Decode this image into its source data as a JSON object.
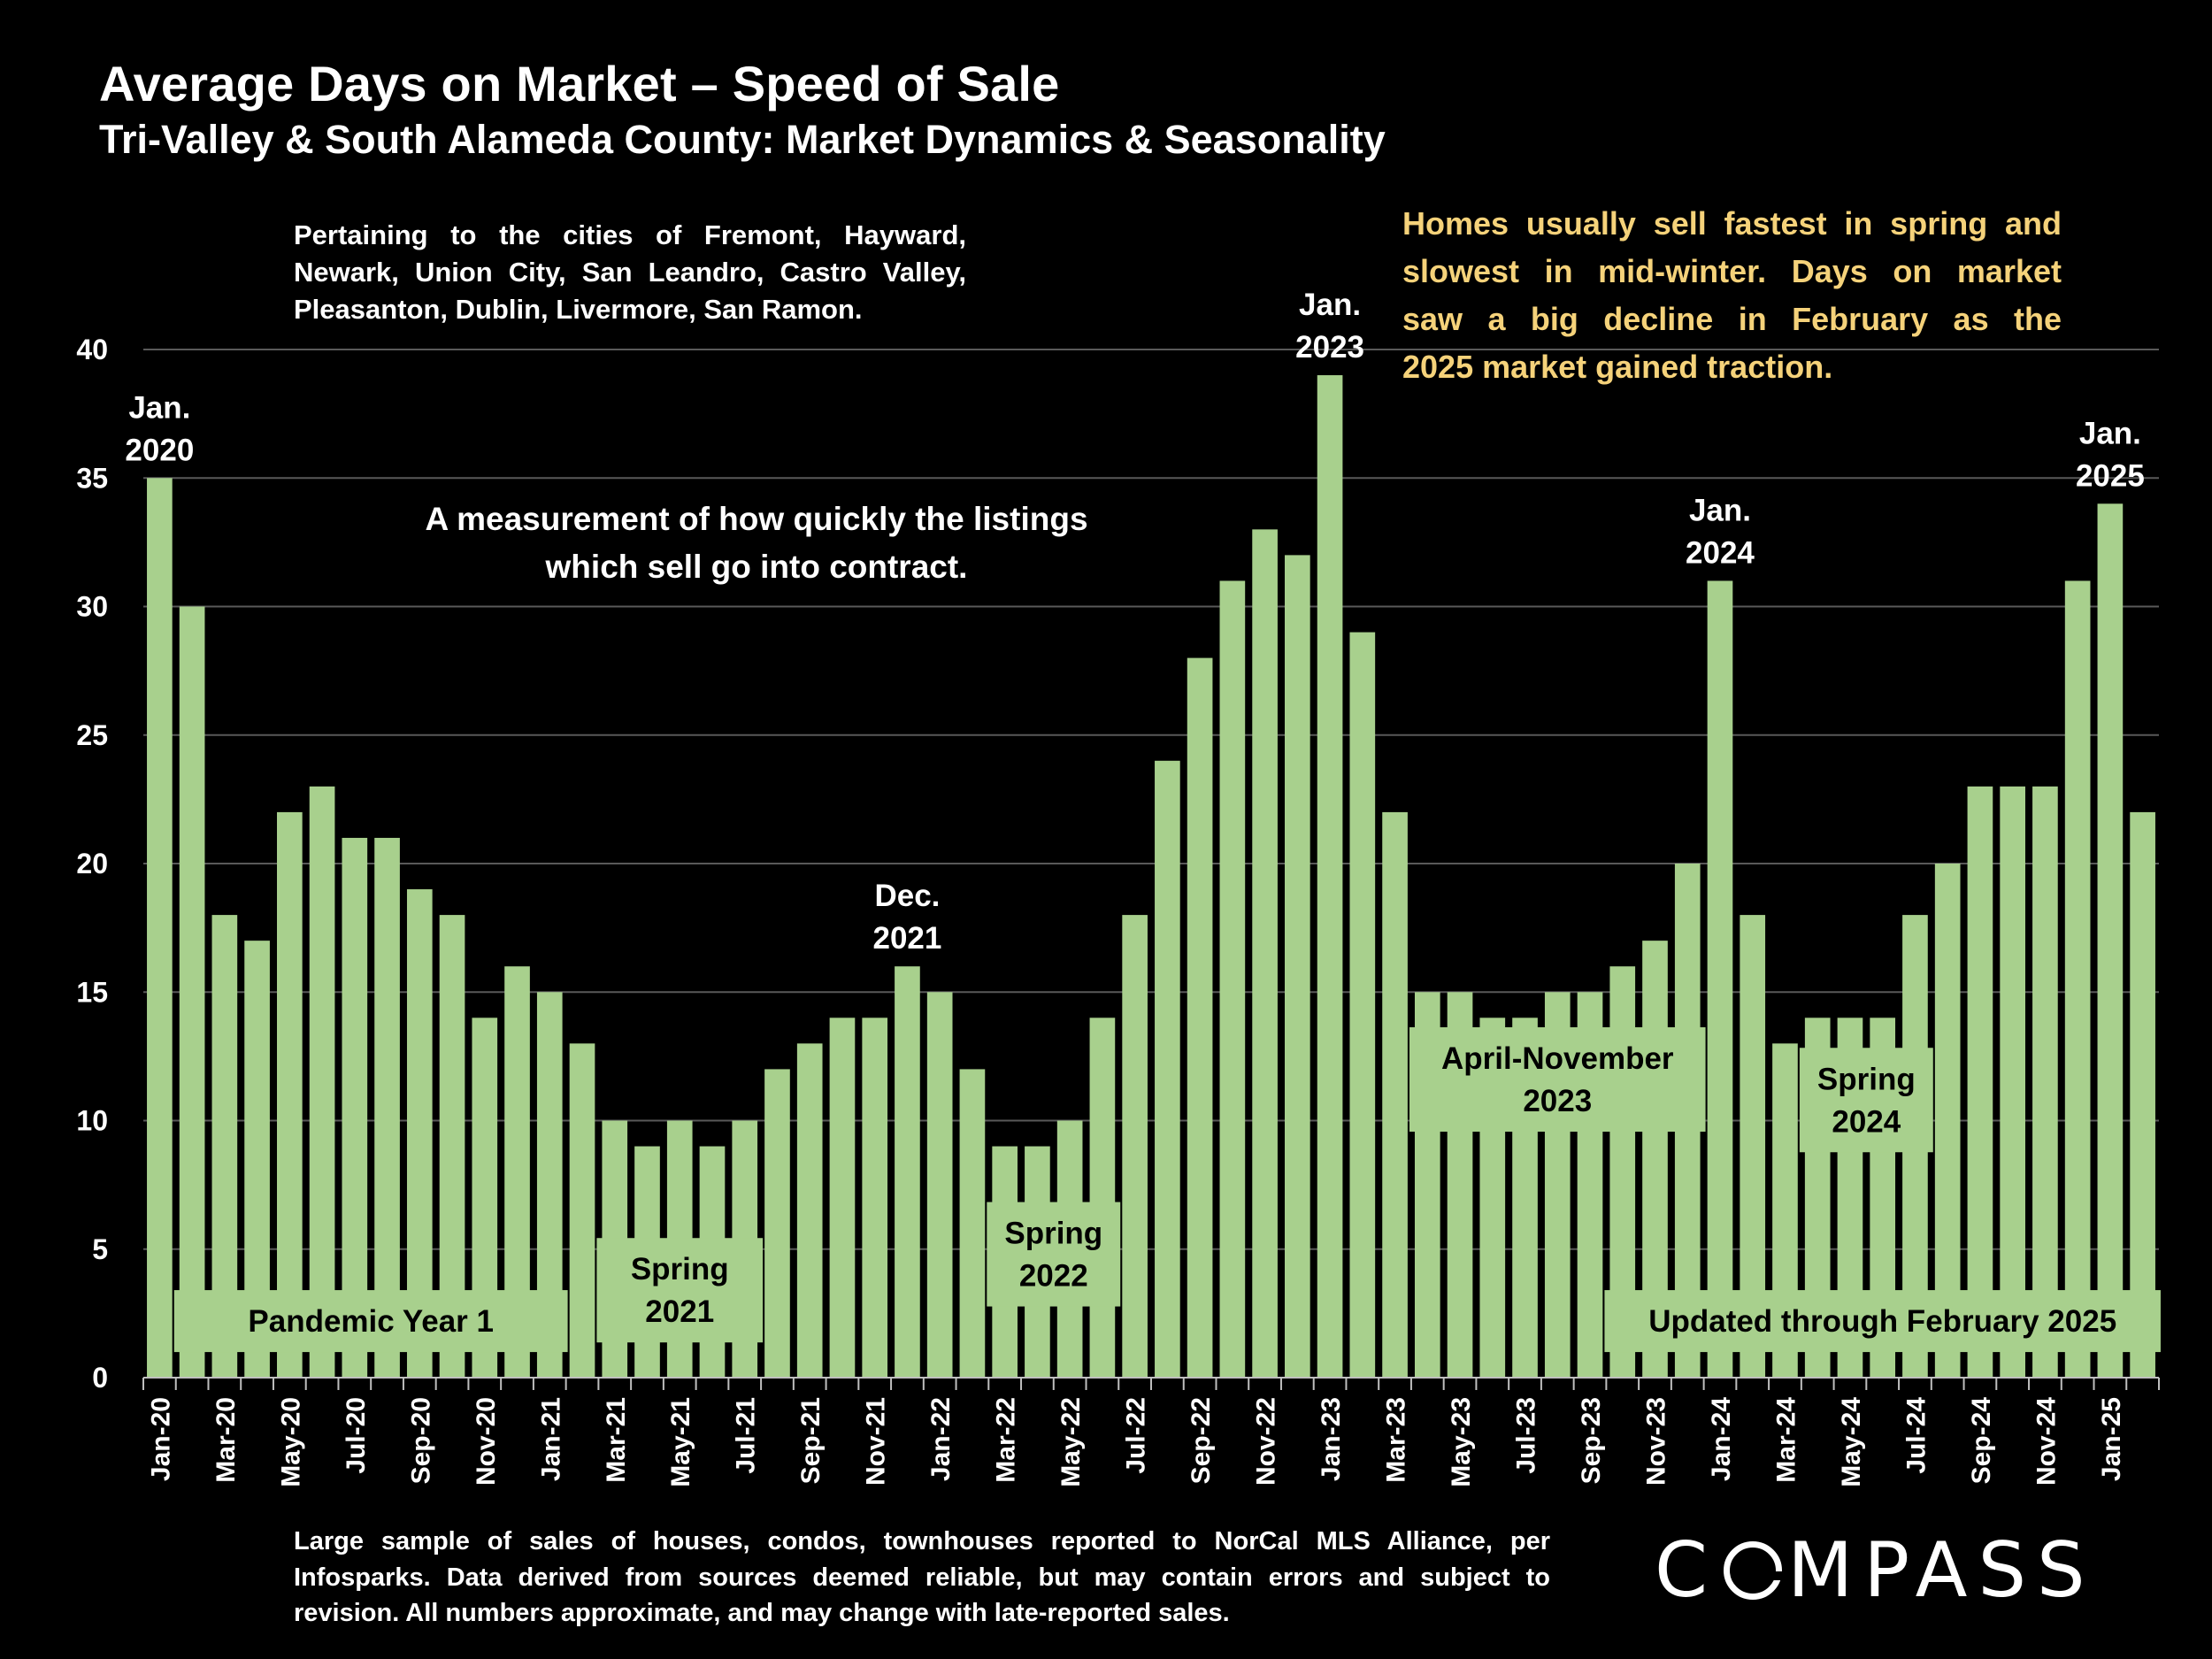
{
  "header": {
    "title": "Average Days on Market – Speed of Sale",
    "subtitle": "Tri-Valley & South Alameda County: Market Dynamics & Seasonality"
  },
  "notes": {
    "cities": [
      "Pertaining to the cities of Fremont, Hayward,",
      "Newark, Union City, San Leandro, Castro Valley,",
      "Pleasanton, Dublin, Livermore, San Ramon."
    ],
    "measurement": [
      "A measurement of how quickly the listings",
      "which sell go into contract."
    ],
    "seasonality": [
      "Homes usually sell fastest in spring and",
      "slowest in mid-winter. Days on market",
      "saw a big decline in February as the",
      "2025 market gained traction."
    ]
  },
  "footnote": [
    "Large sample of sales of houses, condos, townhouses reported to NorCal MLS Alliance, per",
    "Infosparks. Data derived from sources deemed reliable, but may contain errors and subject to",
    "revision. All numbers approximate, and may change with late-reported sales."
  ],
  "logo": {
    "text": "COMPASS"
  },
  "colors": {
    "bar": "#a8d08d",
    "grid": "#595959",
    "season_text": "#f5d27a",
    "background": "#000000"
  },
  "chart_data": {
    "type": "bar",
    "title": "Average Days on Market – Speed of Sale",
    "xlabel": "",
    "ylabel": "",
    "ylim": [
      0,
      40
    ],
    "yticks": [
      0,
      5,
      10,
      15,
      20,
      25,
      30,
      35,
      40
    ],
    "grid": true,
    "categories": [
      "Jan-20",
      "Feb-20",
      "Mar-20",
      "Apr-20",
      "May-20",
      "Jun-20",
      "Jul-20",
      "Aug-20",
      "Sep-20",
      "Oct-20",
      "Nov-20",
      "Dec-20",
      "Jan-21",
      "Feb-21",
      "Mar-21",
      "Apr-21",
      "May-21",
      "Jun-21",
      "Jul-21",
      "Aug-21",
      "Sep-21",
      "Oct-21",
      "Nov-21",
      "Dec-21",
      "Jan-22",
      "Feb-22",
      "Mar-22",
      "Apr-22",
      "May-22",
      "Jun-22",
      "Jul-22",
      "Aug-22",
      "Sep-22",
      "Oct-22",
      "Nov-22",
      "Dec-22",
      "Jan-23",
      "Feb-23",
      "Mar-23",
      "Apr-23",
      "May-23",
      "Jun-23",
      "Jul-23",
      "Aug-23",
      "Sep-23",
      "Oct-23",
      "Nov-23",
      "Dec-23",
      "Jan-24",
      "Feb-24",
      "Mar-24",
      "Apr-24",
      "May-24",
      "Jun-24",
      "Jul-24",
      "Aug-24",
      "Sep-24",
      "Oct-24",
      "Nov-24",
      "Dec-24",
      "Jan-25",
      "Feb-25"
    ],
    "values": [
      35,
      30,
      18,
      17,
      22,
      23,
      21,
      21,
      19,
      18,
      14,
      16,
      15,
      13,
      10,
      9,
      10,
      9,
      10,
      12,
      13,
      14,
      14,
      16,
      15,
      12,
      9,
      9,
      10,
      14,
      18,
      24,
      28,
      31,
      33,
      32,
      39,
      29,
      22,
      15,
      15,
      14,
      14,
      15,
      15,
      16,
      17,
      20,
      31,
      18,
      13,
      14,
      14,
      14,
      18,
      20,
      23,
      23,
      23,
      31,
      34,
      22
    ],
    "tick_labels": [
      "Jan-20",
      "Mar-20",
      "May-20",
      "Jul-20",
      "Sep-20",
      "Nov-20",
      "Jan-21",
      "Mar-21",
      "May-21",
      "Jul-21",
      "Sep-21",
      "Nov-21",
      "Jan-22",
      "Mar-22",
      "May-22",
      "Jul-22",
      "Sep-22",
      "Nov-22",
      "Jan-23",
      "Mar-23",
      "May-23",
      "Jul-23",
      "Sep-23",
      "Nov-23",
      "Jan-24",
      "Mar-24",
      "May-24",
      "Jul-24",
      "Sep-24",
      "Nov-24",
      "Jan-25"
    ],
    "peak_annotations": [
      {
        "index": 0,
        "lines": [
          "Jan.",
          "2020"
        ]
      },
      {
        "index": 23,
        "lines": [
          "Dec.",
          "2021"
        ]
      },
      {
        "index": 36,
        "lines": [
          "Jan.",
          "2023"
        ]
      },
      {
        "index": 48,
        "lines": [
          "Jan.",
          "2024"
        ]
      },
      {
        "index": 60,
        "lines": [
          "Jan.",
          "2025"
        ]
      }
    ],
    "period_annotations": [
      {
        "from": 1,
        "to": 12,
        "value": 2.2,
        "lines": [
          "Pandemic Year 1"
        ]
      },
      {
        "from": 14,
        "to": 18,
        "value": 3.4,
        "lines": [
          "Spring",
          "2021"
        ]
      },
      {
        "from": 26,
        "to": 29,
        "value": 4.8,
        "lines": [
          "Spring",
          "2022"
        ]
      },
      {
        "from": 39,
        "to": 47,
        "value": 11.6,
        "lines": [
          "April-November",
          "2023"
        ]
      },
      {
        "from": 51,
        "to": 54,
        "value": 10.8,
        "lines": [
          "Spring",
          "2024"
        ]
      },
      {
        "from": 45,
        "to": 61,
        "value": 2.2,
        "lines": [
          "Updated through February 2025"
        ]
      }
    ]
  }
}
